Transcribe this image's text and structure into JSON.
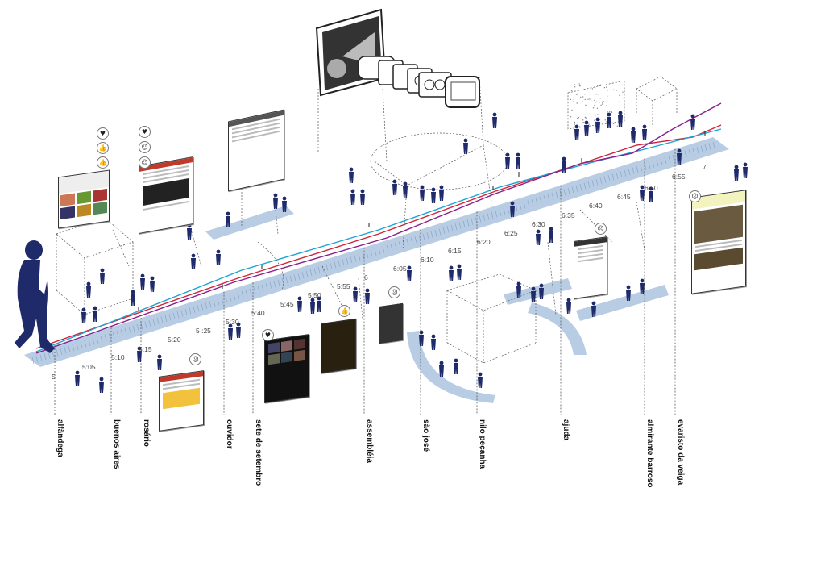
{
  "streets": [
    "alfândega",
    "buenos aires",
    "rosário",
    "ouvidor",
    "sete de setembro",
    "assembléia",
    "são josé",
    "nilo peçanha",
    "ajuda",
    "almirante barroso",
    "evaristo da veiga"
  ],
  "times": [
    "5",
    "5:05",
    "5:10",
    "5:15",
    "5:20",
    "5 :25",
    "5:30",
    "5:40",
    "5:45",
    "5:50",
    "5:55",
    "6",
    "6:05",
    "6:10",
    "6:15",
    "6:20",
    "6:25",
    "6:30",
    "6:35",
    "6:40",
    "6:45",
    "6:50",
    "6:55",
    "7"
  ],
  "colors": {
    "figure": "#1f2a6b",
    "band": "#b8cde4",
    "line_red": "#d0243a",
    "line_cyan": "#1aa3d4",
    "line_purple": "#8a1f8c",
    "dashed": "#555555"
  },
  "icons": [
    "heart-icon",
    "thumbs-up-icon",
    "smiley-icon",
    "sad-face-icon",
    "neutral-face-icon"
  ]
}
